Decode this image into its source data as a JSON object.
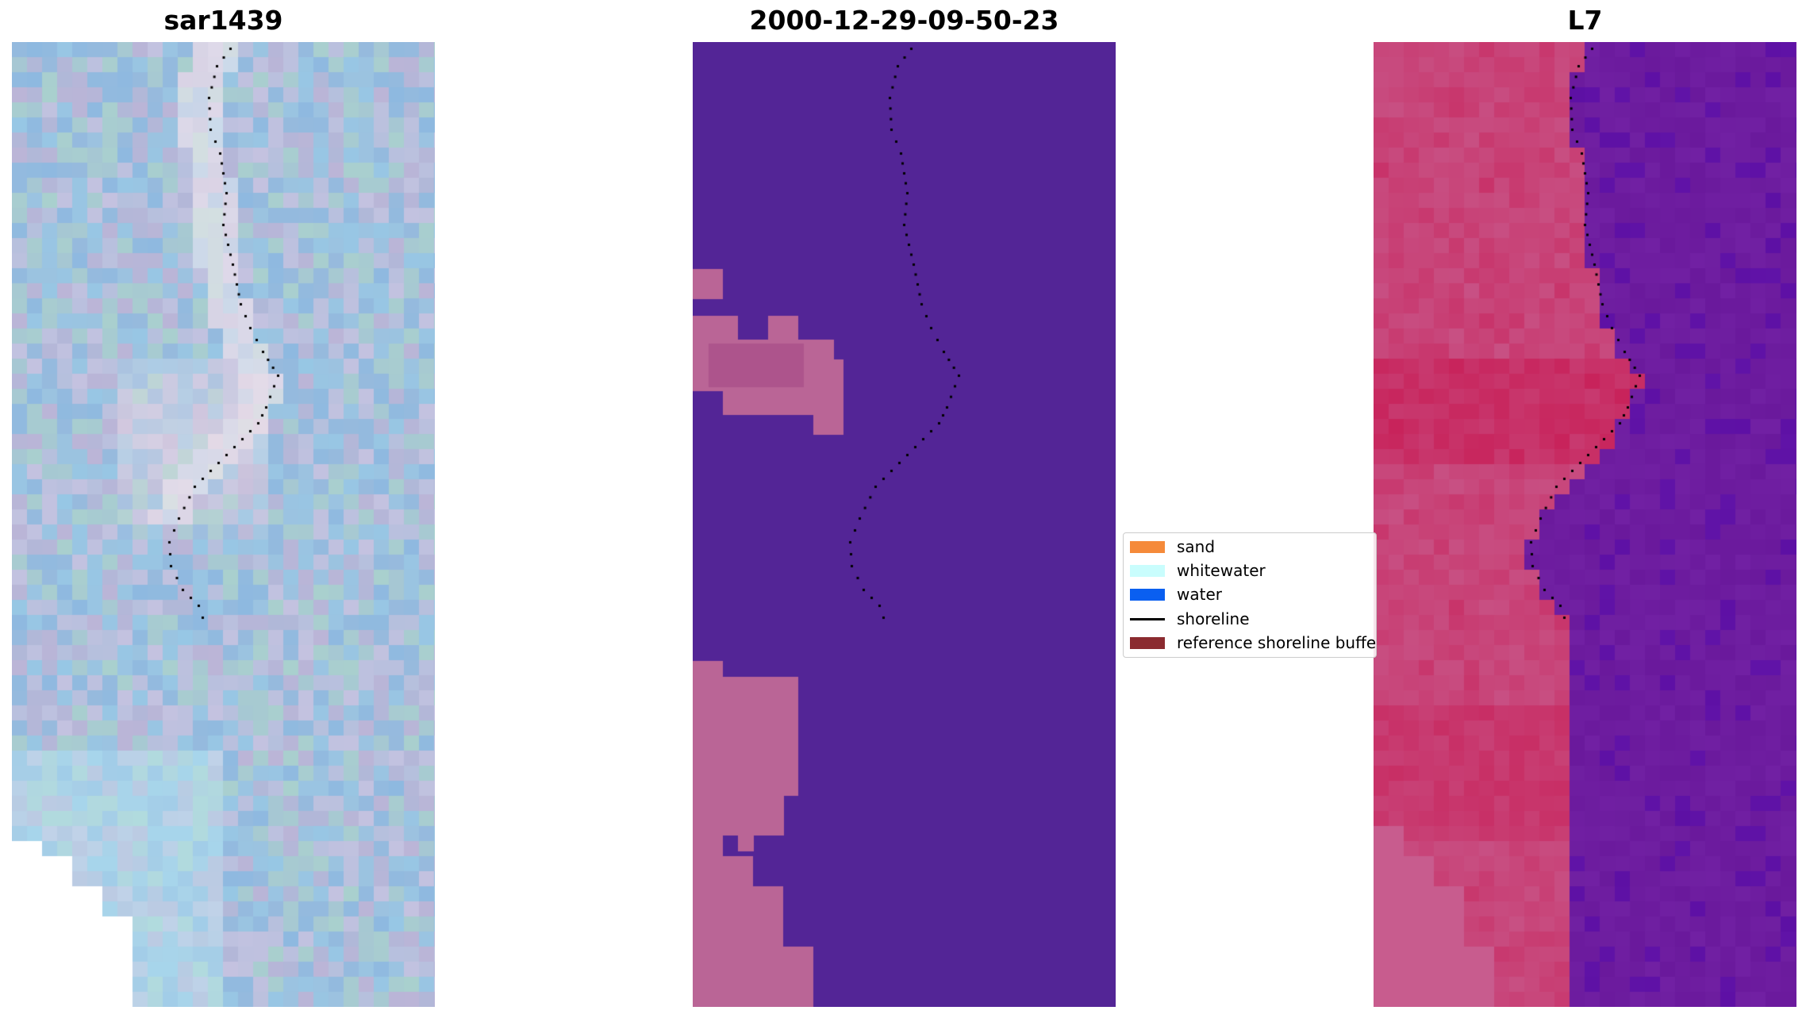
{
  "panels": [
    {
      "title": "sar1439"
    },
    {
      "title": "2000-12-29-09-50-23"
    },
    {
      "title": "L7"
    }
  ],
  "legend": {
    "items": [
      {
        "label": "sand",
        "color": "#f58a3a",
        "kind": "patch"
      },
      {
        "label": "whitewater",
        "color": "#c9fdfd",
        "kind": "patch"
      },
      {
        "label": "water",
        "color": "#0a5ff0",
        "kind": "patch"
      },
      {
        "label": "shoreline",
        "color": "#000000",
        "kind": "line"
      },
      {
        "label": "reference shoreline buffer",
        "color": "#8b2b30",
        "kind": "patch"
      }
    ]
  },
  "colors": {
    "sar_base": "#a2bcd9",
    "class_water_purple": "#532596",
    "class_pink": "#ba6596",
    "class_pink_dark": "#ad548c",
    "l7_red": "#c8104a",
    "l7_pink": "#c85c8e",
    "l7_purple": "#6a199c",
    "shoreline_dots": "#000000"
  }
}
